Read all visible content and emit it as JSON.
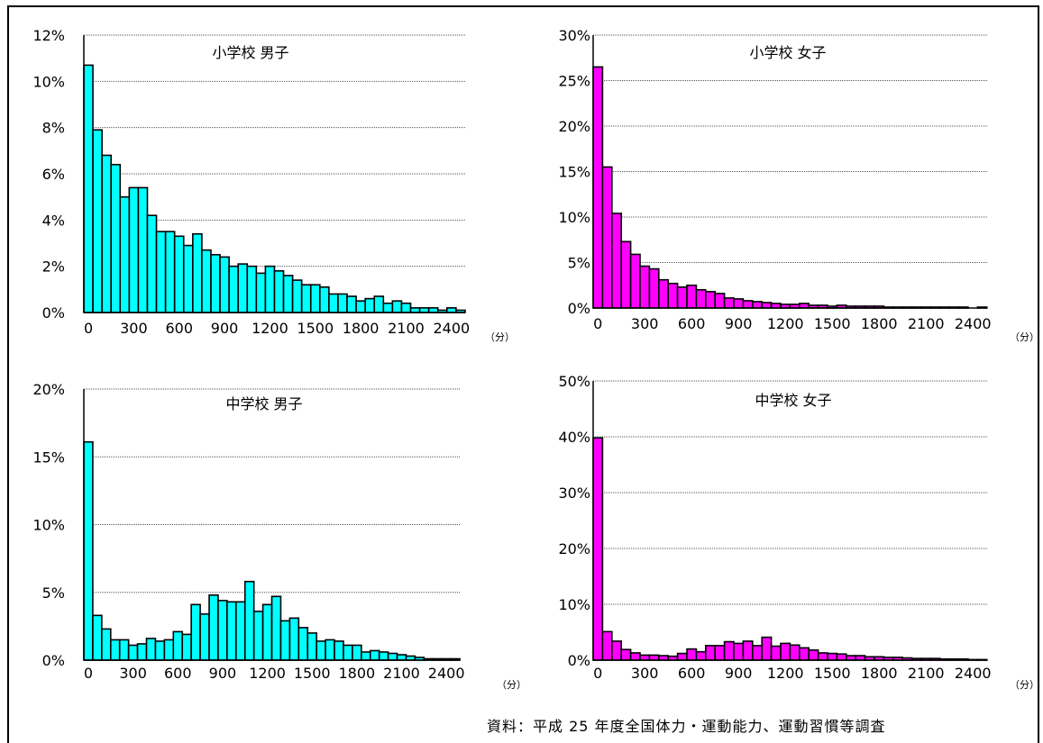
{
  "source": "資料：平成 25 年度全国体力・運動能力、運動習慣等調査",
  "chart_data": [
    {
      "type": "bar",
      "title": "小学校  男子",
      "color": "#00FFFF",
      "unit_label": "（分）",
      "ylim": [
        0,
        12
      ],
      "yticks": [
        0,
        2,
        4,
        6,
        8,
        10,
        12
      ],
      "ytick_labels": [
        "0%",
        "2%",
        "4%",
        "6%",
        "8%",
        "10%",
        "12%"
      ],
      "xticks": [
        "0",
        "300",
        "600",
        "900",
        "1200",
        "1500",
        "1800",
        "2100",
        "2400"
      ],
      "x_step": 60,
      "values": [
        10.7,
        7.9,
        6.8,
        6.4,
        5.0,
        5.4,
        5.4,
        4.2,
        3.5,
        3.5,
        3.3,
        2.9,
        3.4,
        2.7,
        2.5,
        2.4,
        2.0,
        2.1,
        2.0,
        1.7,
        2.0,
        1.8,
        1.6,
        1.4,
        1.2,
        1.2,
        1.1,
        0.8,
        0.8,
        0.7,
        0.5,
        0.6,
        0.7,
        0.4,
        0.5,
        0.4,
        0.2,
        0.2,
        0.2,
        0.1,
        0.2,
        0.1
      ]
    },
    {
      "type": "bar",
      "title": "小学校  女子",
      "color": "#FF00FF",
      "unit_label": "（分）",
      "ylim": [
        0,
        30
      ],
      "yticks": [
        0,
        5,
        10,
        15,
        20,
        25,
        30
      ],
      "ytick_labels": [
        "0%",
        "5%",
        "10%",
        "15%",
        "20%",
        "25%",
        "30%"
      ],
      "xticks": [
        "0",
        "300",
        "600",
        "900",
        "1200",
        "1500",
        "1800",
        "2100",
        "2400"
      ],
      "x_step": 60,
      "values": [
        26.5,
        15.5,
        10.4,
        7.3,
        5.9,
        4.6,
        4.3,
        3.1,
        2.7,
        2.3,
        2.5,
        2.0,
        1.8,
        1.6,
        1.1,
        1.0,
        0.8,
        0.7,
        0.6,
        0.5,
        0.4,
        0.4,
        0.5,
        0.3,
        0.3,
        0.2,
        0.3,
        0.2,
        0.2,
        0.2,
        0.2,
        0.1,
        0.1,
        0.1,
        0.1,
        0.1,
        0.1,
        0.1,
        0.1,
        0.1,
        0.0,
        0.1
      ]
    },
    {
      "type": "bar",
      "title": "中学校  男子",
      "color": "#00FFFF",
      "unit_label": "（分）",
      "ylim": [
        0,
        20
      ],
      "yticks": [
        0,
        5,
        10,
        15,
        20
      ],
      "ytick_labels": [
        "0%",
        "5%",
        "10%",
        "15%",
        "20%"
      ],
      "xticks": [
        "0",
        "300",
        "600",
        "900",
        "1200",
        "1500",
        "1800",
        "2100",
        "2400"
      ],
      "x_step": 60,
      "values": [
        16.1,
        3.3,
        2.3,
        1.5,
        1.5,
        1.1,
        1.2,
        1.6,
        1.4,
        1.5,
        2.1,
        1.9,
        4.1,
        3.4,
        4.8,
        4.4,
        4.3,
        4.3,
        5.8,
        3.6,
        4.1,
        4.7,
        2.9,
        3.1,
        2.4,
        2.0,
        1.4,
        1.5,
        1.4,
        1.1,
        1.1,
        0.6,
        0.7,
        0.6,
        0.5,
        0.4,
        0.3,
        0.2,
        0.1,
        0.1,
        0.1,
        0.1
      ]
    },
    {
      "type": "bar",
      "title": "中学校  女子",
      "color": "#FF00FF",
      "unit_label": "（分）",
      "ylim": [
        0,
        50
      ],
      "yticks": [
        0,
        10,
        20,
        30,
        40,
        50
      ],
      "ytick_labels": [
        "0%",
        "10%",
        "20%",
        "30%",
        "40%",
        "50%"
      ],
      "xticks": [
        "0",
        "300",
        "600",
        "900",
        "1200",
        "1500",
        "1800",
        "2100",
        "2400"
      ],
      "x_step": 60,
      "values": [
        39.8,
        5.1,
        3.4,
        1.9,
        1.3,
        0.9,
        0.9,
        0.8,
        0.7,
        1.2,
        2.0,
        1.5,
        2.6,
        2.6,
        3.3,
        3.0,
        3.4,
        2.6,
        4.1,
        2.5,
        3.0,
        2.7,
        2.2,
        1.8,
        1.3,
        1.2,
        1.1,
        0.8,
        0.8,
        0.6,
        0.6,
        0.5,
        0.5,
        0.4,
        0.3,
        0.3,
        0.3,
        0.2,
        0.2,
        0.2,
        0.1,
        0.1
      ]
    }
  ]
}
